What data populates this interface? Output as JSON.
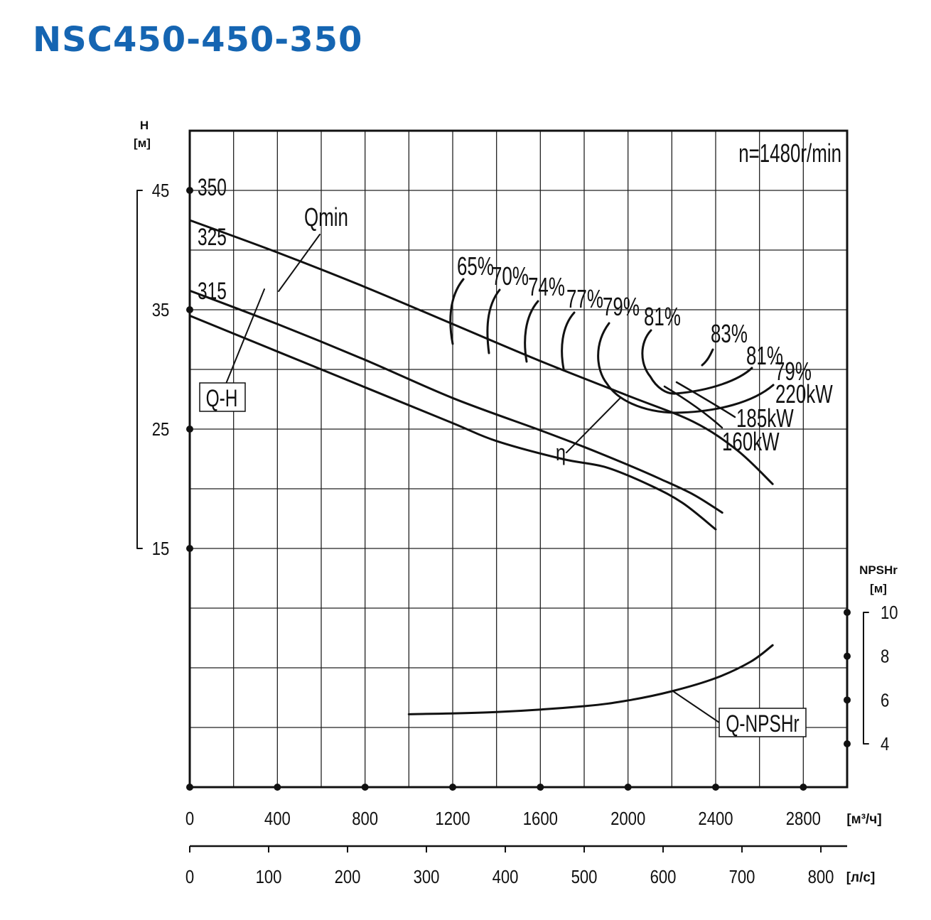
{
  "title": "NSC450-450-350",
  "colors": {
    "title": "#1565b2",
    "ink": "#111111",
    "grid": "#222222"
  },
  "chart_data": {
    "type": "line",
    "annotation_speed": "n=1480r/min",
    "x_axis_main": {
      "unit": "[м³/ч]",
      "ticks": [
        "0",
        "400",
        "800",
        "1200",
        "1600",
        "2000",
        "2400",
        "2800"
      ],
      "range": [
        0,
        3000
      ]
    },
    "x_axis_secondary": {
      "unit": "[л/с]",
      "ticks": [
        "0",
        "100",
        "200",
        "300",
        "400",
        "500",
        "600",
        "700",
        "800"
      ],
      "range": [
        0,
        833.3
      ]
    },
    "y_axis_head": {
      "label": "H",
      "unit": "[м]",
      "ticks": [
        "45",
        "35",
        "25",
        "15"
      ],
      "range": [
        -5,
        50
      ]
    },
    "y_axis_npsh": {
      "label": "NPSHr",
      "unit": "[м]",
      "ticks": [
        "10",
        "8",
        "6",
        "4"
      ],
      "range": [
        0,
        10
      ]
    },
    "curve_labels": {
      "qh": "Q-H",
      "qmin": "Qmin",
      "eta": "η",
      "npsh": "Q-NPSHr"
    },
    "series": [
      {
        "name": "350",
        "x": [
          0,
          400,
          800,
          1200,
          1600,
          2000,
          2300,
          2500,
          2660
        ],
        "y": [
          42.5,
          39.8,
          36.9,
          33.8,
          30.7,
          27.8,
          25.6,
          23.2,
          20.4
        ]
      },
      {
        "name": "325",
        "x": [
          0,
          400,
          800,
          1200,
          1600,
          1800,
          2000,
          2150,
          2300,
          2430
        ],
        "y": [
          36.6,
          33.8,
          30.8,
          27.6,
          24.9,
          23.5,
          22.0,
          20.8,
          19.5,
          18.0
        ]
      },
      {
        "name": "315",
        "x": [
          0,
          400,
          800,
          1200,
          1400,
          1700,
          1900,
          2100,
          2250,
          2400
        ],
        "y": [
          34.5,
          31.5,
          28.5,
          25.5,
          24.0,
          22.5,
          21.8,
          20.3,
          18.8,
          16.6
        ]
      }
    ],
    "efficiency_labels": [
      "65%",
      "70%",
      "74%",
      "77%",
      "79%",
      "81%",
      "83%",
      "81%",
      "79%"
    ],
    "power_labels": [
      "220kW",
      "185kW",
      "160kW"
    ],
    "npsh_curve": {
      "x": [
        1000,
        1400,
        1800,
        2000,
        2200,
        2400,
        2560,
        2660
      ],
      "y": [
        5.35,
        5.45,
        5.72,
        5.98,
        6.4,
        7.0,
        7.75,
        8.5
      ]
    }
  }
}
